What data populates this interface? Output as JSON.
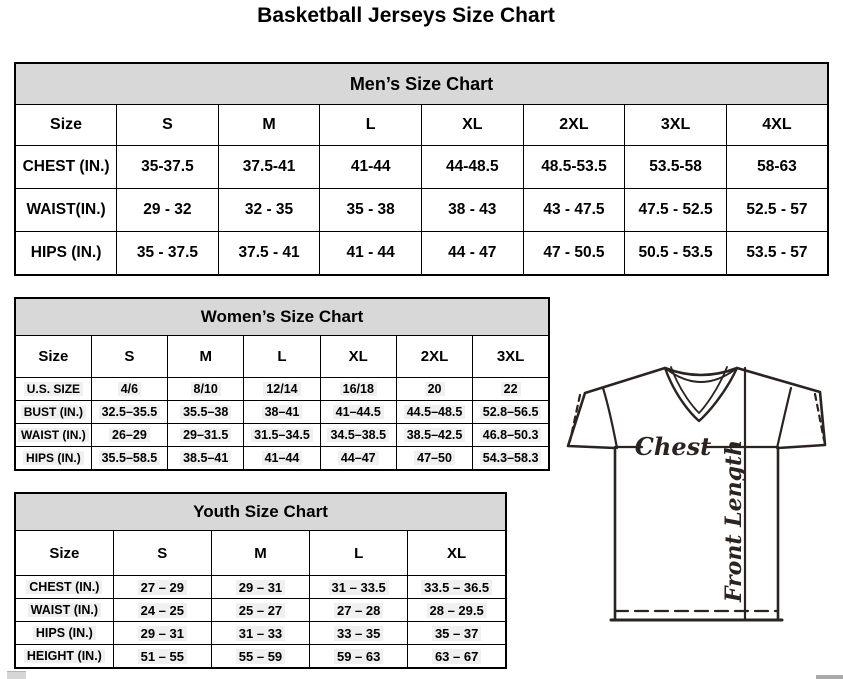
{
  "page_title": "Basketball Jerseys Size Chart",
  "tables": {
    "mens": {
      "title": "Men’s Size Chart",
      "size_label": "Size",
      "columns": [
        "S",
        "M",
        "L",
        "XL",
        "2XL",
        "3XL",
        "4XL"
      ],
      "rows": [
        {
          "label": "CHEST (IN.)",
          "values": [
            "35-37.5",
            "37.5-41",
            "41-44",
            "44-48.5",
            "48.5-53.5",
            "53.5-58",
            "58-63"
          ]
        },
        {
          "label": "WAIST(IN.)",
          "values": [
            "29 - 32",
            "32 - 35",
            "35 - 38",
            "38 - 43",
            "43 - 47.5",
            "47.5 - 52.5",
            "52.5 - 57"
          ]
        },
        {
          "label": "HIPS (IN.)",
          "values": [
            "35 - 37.5",
            "37.5 - 41",
            "41 - 44",
            "44 - 47",
            "47 - 50.5",
            "50.5 - 53.5",
            "53.5 - 57"
          ]
        }
      ]
    },
    "womens": {
      "title": "Women’s Size Chart",
      "size_label": "Size",
      "columns": [
        "S",
        "M",
        "L",
        "XL",
        "2XL",
        "3XL"
      ],
      "rows": [
        {
          "label": "U.S. SIZE",
          "values": [
            "4/6",
            "8/10",
            "12/14",
            "16/18",
            "20",
            "22"
          ]
        },
        {
          "label": "BUST (IN.)",
          "values": [
            "32.5–35.5",
            "35.5–38",
            "38–41",
            "41–44.5",
            "44.5–48.5",
            "52.8–56.5"
          ]
        },
        {
          "label": "WAIST (IN.)",
          "values": [
            "26–29",
            "29–31.5",
            "31.5–34.5",
            "34.5–38.5",
            "38.5–42.5",
            "46.8–50.3"
          ]
        },
        {
          "label": "HIPS (IN.)",
          "values": [
            "35.5–58.5",
            "38.5–41",
            "41–44",
            "44–47",
            "47–50",
            "54.3–58.3"
          ]
        }
      ]
    },
    "youth": {
      "title": "Youth Size Chart",
      "size_label": "Size",
      "columns": [
        "S",
        "M",
        "L",
        "XL"
      ],
      "rows": [
        {
          "label": "CHEST (IN.)",
          "values": [
            "27 – 29",
            "29 – 31",
            "31 – 33.5",
            "33.5 – 36.5"
          ]
        },
        {
          "label": "WAIST (IN.)",
          "values": [
            "24 – 25",
            "25 – 27",
            "27 – 28",
            "28 – 29.5"
          ]
        },
        {
          "label": "HIPS (IN.)",
          "values": [
            "29 – 31",
            "31 – 33",
            "33 – 35",
            "35 – 37"
          ]
        },
        {
          "label": "HEIGHT (IN.)",
          "values": [
            "51 – 55",
            "55 – 59",
            "59 – 63",
            "63 – 67"
          ]
        }
      ]
    }
  },
  "diagram": {
    "chest_label": "Chest",
    "front_length_label": "Front Length"
  },
  "colors": {
    "table_header_bg": "#d8d8d8",
    "table_border": "#000000",
    "value_highlight": "#f0f0f0",
    "diagram_line": "#2b2320"
  }
}
